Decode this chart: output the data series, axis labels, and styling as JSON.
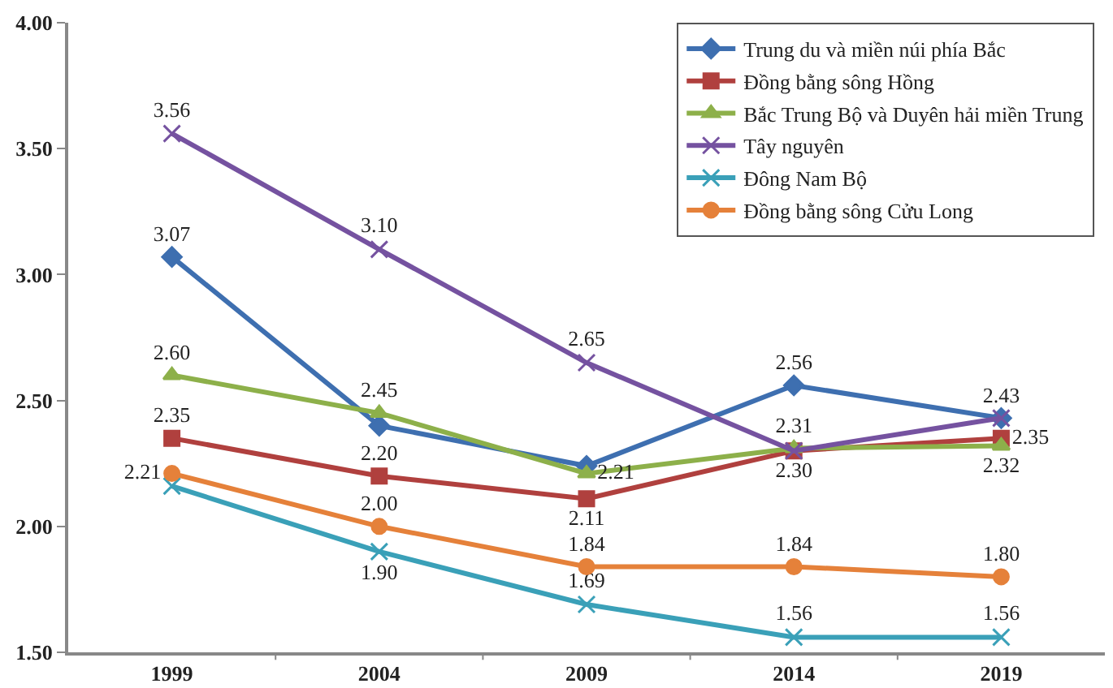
{
  "chart_data": {
    "type": "line",
    "categories": [
      "1999",
      "2004",
      "2009",
      "2014",
      "2019"
    ],
    "ylim": [
      1.5,
      4
    ],
    "yticks": [
      "1.50",
      "2.00",
      "2.50",
      "3.00",
      "3.50",
      "4.00"
    ],
    "grid": false,
    "legend": "top right",
    "series": [
      {
        "name": "Trung du và miền núi phía Bắc",
        "color": "#3e6fb0",
        "marker": "diamond",
        "values": [
          3.07,
          2.4,
          2.24,
          2.56,
          2.43
        ],
        "value_labels": [
          "3.07",
          null,
          null,
          "2.56",
          "2.43"
        ]
      },
      {
        "name": "Đồng bằng sông Hồng",
        "color": "#b0403e",
        "marker": "square",
        "values": [
          2.35,
          2.2,
          2.11,
          2.3,
          2.35
        ],
        "value_labels": [
          "2.35",
          "2.20",
          "2.11",
          "2.30",
          "2.35"
        ]
      },
      {
        "name": "Bắc Trung Bộ và Duyên hải miền Trung",
        "color": "#8db04a",
        "marker": "triangle",
        "values": [
          2.6,
          2.45,
          2.21,
          2.31,
          2.32
        ],
        "value_labels": [
          "2.60",
          "2.45",
          "2.21",
          "2.31",
          "2.32"
        ]
      },
      {
        "name": "Tây nguyên",
        "color": "#7552a0",
        "marker": "cross",
        "values": [
          3.56,
          3.1,
          2.65,
          2.3,
          2.43
        ],
        "value_labels": [
          "3.56",
          "3.10",
          "2.65",
          null,
          null
        ]
      },
      {
        "name": "Đông Nam Bộ",
        "color": "#3aa0b8",
        "marker": "cross",
        "values": [
          2.16,
          1.9,
          1.69,
          1.56,
          1.56
        ],
        "value_labels": [
          null,
          "1.90",
          "1.69",
          "1.56",
          "1.56"
        ]
      },
      {
        "name": "Đồng bằng sông Cửu Long",
        "color": "#e5813a",
        "marker": "circle",
        "values": [
          2.21,
          2.0,
          1.84,
          1.84,
          1.8
        ],
        "value_labels": [
          "2.21",
          "2.00",
          "1.84",
          "1.84",
          "1.80"
        ]
      }
    ]
  }
}
